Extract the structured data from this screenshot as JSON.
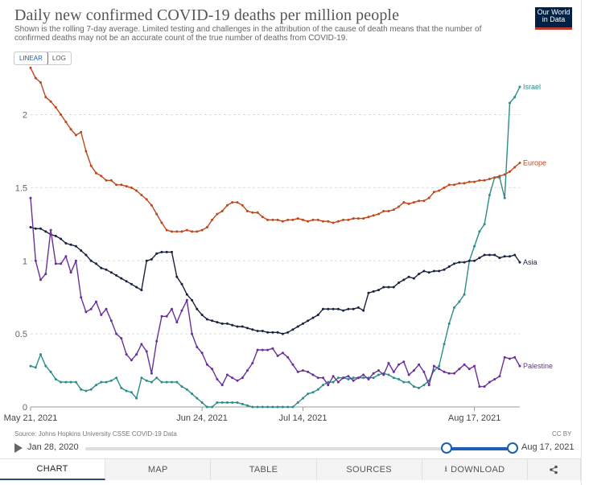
{
  "header": {
    "title": "Daily new confirmed COVID-19 deaths per million people",
    "subtitle": "Shown is the rolling 7-day average. Limited testing and challenges in the attribution of the cause of death means that the number of confirmed deaths may not be an accurate count of the true number of deaths from COVID-19.",
    "logo_line1": "Our World",
    "logo_line2": "in Data"
  },
  "scale_toggle": {
    "linear_label": "LINEAR",
    "log_label": "LOG",
    "selected": "LINEAR"
  },
  "footer": {
    "source": "Source: Johns Hopkins University CSSE COVID-19 Data",
    "license": "CC BY"
  },
  "timeline": {
    "start_label": "Jan 28, 2020",
    "end_label": "Aug 17, 2021",
    "selected_start_fraction": 0.845,
    "selected_end_fraction": 1.0
  },
  "tabs": [
    {
      "label": "CHART",
      "icon": ""
    },
    {
      "label": "MAP",
      "icon": ""
    },
    {
      "label": "TABLE",
      "icon": ""
    },
    {
      "label": "SOURCES",
      "icon": ""
    },
    {
      "label": "DOWNLOAD",
      "icon": "download-icon"
    },
    {
      "label": "",
      "icon": "share-icon"
    }
  ],
  "active_tab": "CHART",
  "colors": {
    "Israel": "#2a8d88",
    "Europe": "#c0461c",
    "Asia": "#18223e",
    "Palestine": "#6b2f9a",
    "accent": "#1a5fb4"
  },
  "chart_data": {
    "type": "line",
    "title": "Daily new confirmed COVID-19 deaths per million people",
    "xlabel": "",
    "ylabel": "",
    "x_start": "2021-05-20",
    "x_ticks": [
      "May 21, 2021",
      "Jun 24, 2021",
      "Jul 14, 2021",
      "Aug 17, 2021"
    ],
    "x_tick_days": [
      1,
      35,
      55,
      89
    ],
    "y_ticks": [
      "0",
      "0.5",
      "1",
      "1.5",
      "2"
    ],
    "ylim": [
      0,
      2.3
    ],
    "grid": "horizontal-dashed",
    "legend": "end-labels-right",
    "series": [
      {
        "name": "Israel",
        "values": [
          0.28,
          0.27,
          0.36,
          0.28,
          0.24,
          0.19,
          0.17,
          0.17,
          0.17,
          0.17,
          0.12,
          0.11,
          0.12,
          0.15,
          0.17,
          0.17,
          0.18,
          0.2,
          0.13,
          0.11,
          0.1,
          0.06,
          0.2,
          0.18,
          0.17,
          0.2,
          0.17,
          0.17,
          0.17,
          0.17,
          0.14,
          0.12,
          0.09,
          0.06,
          0.03,
          0.0,
          0.0,
          0.03,
          0.03,
          0.03,
          0.03,
          0.03,
          0.02,
          0.01,
          0.0,
          0.0,
          0.0,
          0.0,
          0.0,
          0.0,
          0.0,
          0.0,
          0.0,
          0.03,
          0.06,
          0.09,
          0.1,
          0.12,
          0.15,
          0.17,
          0.17,
          0.2,
          0.2,
          0.19,
          0.2,
          0.2,
          0.2,
          0.2,
          0.2,
          0.22,
          0.23,
          0.22,
          0.2,
          0.19,
          0.17,
          0.17,
          0.14,
          0.13,
          0.15,
          0.18,
          0.25,
          0.28,
          0.43,
          0.57,
          0.68,
          0.72,
          0.77,
          1.0,
          1.1,
          1.2,
          1.25,
          1.45,
          1.57,
          1.57,
          1.43,
          2.08,
          2.12,
          2.19
        ]
      },
      {
        "name": "Europe",
        "values": [
          2.32,
          2.25,
          2.22,
          2.12,
          2.09,
          2.05,
          2.0,
          1.95,
          1.9,
          1.86,
          1.88,
          1.75,
          1.65,
          1.6,
          1.58,
          1.55,
          1.55,
          1.52,
          1.52,
          1.51,
          1.5,
          1.48,
          1.45,
          1.42,
          1.38,
          1.32,
          1.26,
          1.21,
          1.2,
          1.2,
          1.2,
          1.21,
          1.2,
          1.2,
          1.21,
          1.23,
          1.28,
          1.32,
          1.34,
          1.38,
          1.4,
          1.4,
          1.38,
          1.34,
          1.33,
          1.33,
          1.3,
          1.28,
          1.28,
          1.28,
          1.27,
          1.28,
          1.28,
          1.29,
          1.28,
          1.27,
          1.28,
          1.28,
          1.27,
          1.27,
          1.26,
          1.27,
          1.28,
          1.28,
          1.29,
          1.29,
          1.29,
          1.3,
          1.31,
          1.32,
          1.34,
          1.34,
          1.35,
          1.37,
          1.4,
          1.39,
          1.4,
          1.41,
          1.41,
          1.43,
          1.47,
          1.48,
          1.5,
          1.52,
          1.52,
          1.53,
          1.53,
          1.54,
          1.54,
          1.55,
          1.55,
          1.56,
          1.57,
          1.58,
          1.59,
          1.61,
          1.64,
          1.67
        ]
      },
      {
        "name": "Asia",
        "values": [
          1.23,
          1.22,
          1.22,
          1.2,
          1.18,
          1.17,
          1.15,
          1.12,
          1.11,
          1.1,
          1.07,
          1.04,
          1.0,
          0.98,
          0.95,
          0.94,
          0.92,
          0.9,
          0.88,
          0.86,
          0.84,
          0.82,
          0.8,
          1.0,
          1.01,
          1.05,
          1.06,
          1.06,
          1.06,
          0.89,
          0.84,
          0.77,
          0.73,
          0.67,
          0.63,
          0.6,
          0.59,
          0.58,
          0.57,
          0.57,
          0.56,
          0.55,
          0.55,
          0.54,
          0.53,
          0.52,
          0.52,
          0.51,
          0.51,
          0.51,
          0.5,
          0.51,
          0.53,
          0.55,
          0.57,
          0.59,
          0.61,
          0.63,
          0.67,
          0.67,
          0.67,
          0.67,
          0.66,
          0.67,
          0.67,
          0.68,
          0.66,
          0.78,
          0.79,
          0.8,
          0.82,
          0.82,
          0.82,
          0.85,
          0.87,
          0.89,
          0.88,
          0.91,
          0.93,
          0.92,
          0.93,
          0.93,
          0.94,
          0.96,
          0.98,
          0.99,
          0.99,
          1.0,
          1.0,
          1.02,
          1.04,
          1.04,
          1.04,
          1.02,
          1.03,
          1.03,
          1.04,
          0.99
        ]
      },
      {
        "name": "Palestine",
        "values": [
          1.43,
          1.0,
          0.87,
          0.91,
          1.21,
          0.98,
          0.98,
          1.03,
          0.92,
          1.0,
          0.75,
          0.65,
          0.67,
          0.72,
          0.63,
          0.67,
          0.59,
          0.5,
          0.47,
          0.36,
          0.32,
          0.36,
          0.43,
          0.38,
          0.23,
          0.45,
          0.62,
          0.62,
          0.67,
          0.58,
          0.66,
          0.73,
          0.5,
          0.41,
          0.37,
          0.29,
          0.26,
          0.19,
          0.15,
          0.22,
          0.2,
          0.18,
          0.2,
          0.25,
          0.3,
          0.39,
          0.39,
          0.39,
          0.4,
          0.35,
          0.37,
          0.34,
          0.29,
          0.24,
          0.25,
          0.24,
          0.22,
          0.2,
          0.2,
          0.15,
          0.21,
          0.17,
          0.2,
          0.21,
          0.18,
          0.2,
          0.22,
          0.19,
          0.23,
          0.25,
          0.22,
          0.3,
          0.24,
          0.29,
          0.31,
          0.22,
          0.25,
          0.29,
          0.24,
          0.15,
          0.28,
          0.26,
          0.24,
          0.23,
          0.23,
          0.26,
          0.29,
          0.26,
          0.28,
          0.14,
          0.14,
          0.17,
          0.19,
          0.21,
          0.34,
          0.33,
          0.34,
          0.28
        ]
      }
    ]
  }
}
